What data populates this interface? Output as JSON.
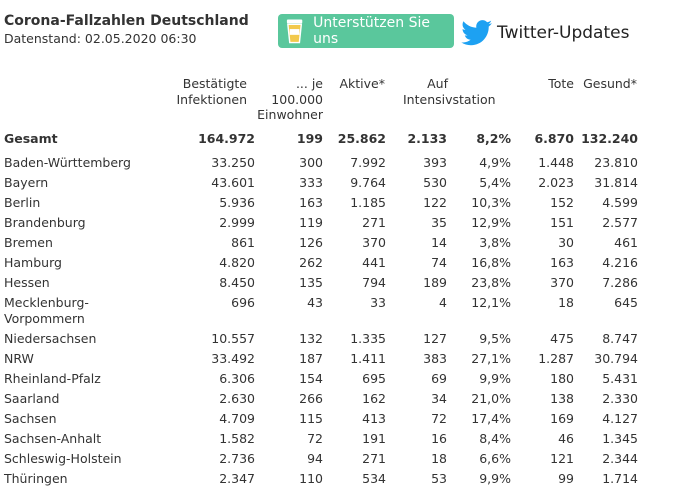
{
  "header": {
    "title": "Corona-Fallzahlen Deutschland",
    "datestamp": "Datenstand: 02.05.2020 06:30",
    "support_label": "Unterstützen Sie uns",
    "twitter_label": "Twitter-Updates"
  },
  "columns": {
    "confirmed_1": "Bestätigte",
    "confirmed_2": "Infektionen",
    "per_1": "... je",
    "per_2": "100.000",
    "per_3": "Einwohner",
    "active": "Aktive*",
    "icu_1": "Auf",
    "icu_2": "Intensivstation",
    "deaths": "Tote",
    "recovered": "Gesund*"
  },
  "total": {
    "label": "Gesamt",
    "confirmed": "164.972",
    "per100k": "199",
    "active": "25.862",
    "icu": "2.133",
    "icu_pct": "8,2%",
    "deaths": "6.870",
    "recovered": "132.240"
  },
  "states": [
    {
      "name": "Baden-Württemberg",
      "confirmed": "33.250",
      "per100k": "300",
      "active": "7.992",
      "icu": "393",
      "icu_pct": "4,9%",
      "deaths": "1.448",
      "recovered": "23.810"
    },
    {
      "name": "Bayern",
      "confirmed": "43.601",
      "per100k": "333",
      "active": "9.764",
      "icu": "530",
      "icu_pct": "5,4%",
      "deaths": "2.023",
      "recovered": "31.814"
    },
    {
      "name": "Berlin",
      "confirmed": "5.936",
      "per100k": "163",
      "active": "1.185",
      "icu": "122",
      "icu_pct": "10,3%",
      "deaths": "152",
      "recovered": "4.599"
    },
    {
      "name": "Brandenburg",
      "confirmed": "2.999",
      "per100k": "119",
      "active": "271",
      "icu": "35",
      "icu_pct": "12,9%",
      "deaths": "151",
      "recovered": "2.577"
    },
    {
      "name": "Bremen",
      "confirmed": "861",
      "per100k": "126",
      "active": "370",
      "icu": "14",
      "icu_pct": "3,8%",
      "deaths": "30",
      "recovered": "461"
    },
    {
      "name": "Hamburg",
      "confirmed": "4.820",
      "per100k": "262",
      "active": "441",
      "icu": "74",
      "icu_pct": "16,8%",
      "deaths": "163",
      "recovered": "4.216"
    },
    {
      "name": "Hessen",
      "confirmed": "8.450",
      "per100k": "135",
      "active": "794",
      "icu": "189",
      "icu_pct": "23,8%",
      "deaths": "370",
      "recovered": "7.286"
    },
    {
      "name": "Mecklenburg-",
      "name2": "Vorpommern",
      "confirmed": "696",
      "per100k": "43",
      "active": "33",
      "icu": "4",
      "icu_pct": "12,1%",
      "deaths": "18",
      "recovered": "645"
    },
    {
      "name": "Niedersachsen",
      "confirmed": "10.557",
      "per100k": "132",
      "active": "1.335",
      "icu": "127",
      "icu_pct": "9,5%",
      "deaths": "475",
      "recovered": "8.747"
    },
    {
      "name": "NRW",
      "confirmed": "33.492",
      "per100k": "187",
      "active": "1.411",
      "icu": "383",
      "icu_pct": "27,1%",
      "deaths": "1.287",
      "recovered": "30.794"
    },
    {
      "name": "Rheinland-Pfalz",
      "confirmed": "6.306",
      "per100k": "154",
      "active": "695",
      "icu": "69",
      "icu_pct": "9,9%",
      "deaths": "180",
      "recovered": "5.431"
    },
    {
      "name": "Saarland",
      "confirmed": "2.630",
      "per100k": "266",
      "active": "162",
      "icu": "34",
      "icu_pct": "21,0%",
      "deaths": "138",
      "recovered": "2.330"
    },
    {
      "name": "Sachsen",
      "confirmed": "4.709",
      "per100k": "115",
      "active": "413",
      "icu": "72",
      "icu_pct": "17,4%",
      "deaths": "169",
      "recovered": "4.127"
    },
    {
      "name": "Sachsen-Anhalt",
      "confirmed": "1.582",
      "per100k": "72",
      "active": "191",
      "icu": "16",
      "icu_pct": "8,4%",
      "deaths": "46",
      "recovered": "1.345"
    },
    {
      "name": "Schleswig-Holstein",
      "confirmed": "2.736",
      "per100k": "94",
      "active": "271",
      "icu": "18",
      "icu_pct": "6,6%",
      "deaths": "121",
      "recovered": "2.344"
    },
    {
      "name": "Thüringen",
      "confirmed": "2.347",
      "per100k": "110",
      "active": "534",
      "icu": "53",
      "icu_pct": "9,9%",
      "deaths": "99",
      "recovered": "1.714"
    }
  ],
  "colors": {
    "support_bg": "#5ac79c",
    "twitter_blue": "#1da1f2",
    "text": "#333333"
  }
}
